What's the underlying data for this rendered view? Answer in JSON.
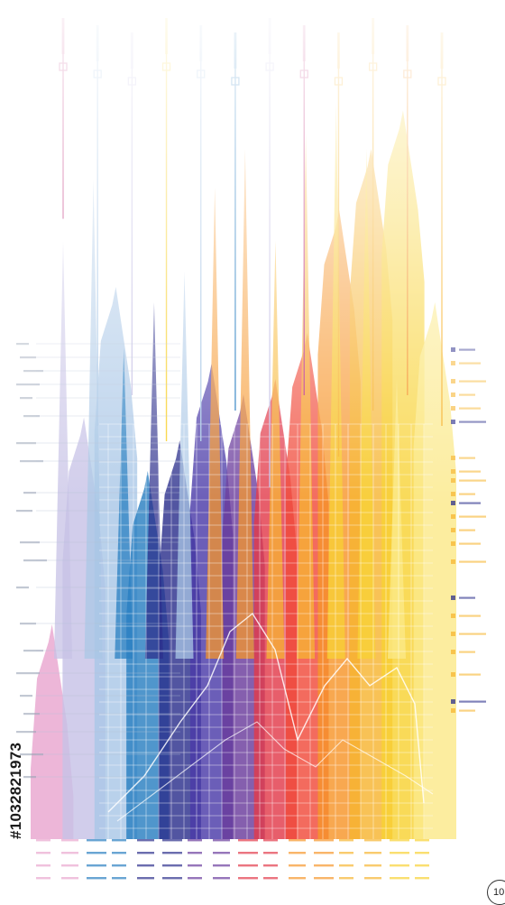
{
  "image": {
    "stock_id": "#1032821973",
    "corner_mark": "10"
  },
  "palette": {
    "pink": "#e9a6cf",
    "magenta": "#c23a82",
    "lavender": "#c7c2e6",
    "light_blue": "#a9c7e6",
    "blue": "#2a7fc1",
    "navy": "#2c2f8c",
    "indigo": "#4a3aa8",
    "violet": "#6a3c9c",
    "crimson": "#e23a4a",
    "red": "#f04b3a",
    "orange": "#f6952a",
    "amber": "#f7b531",
    "yellow": "#f8d233",
    "pale_yellow": "#fbe98a",
    "grid": "#ffffff"
  },
  "bands": [
    {
      "color": "pink",
      "peak": 0.28
    },
    {
      "color": "lavender",
      "peak": 0.55
    },
    {
      "color": "light_blue",
      "peak": 0.72
    },
    {
      "color": "blue",
      "peak": 0.48
    },
    {
      "color": "navy",
      "peak": 0.52
    },
    {
      "color": "indigo",
      "peak": 0.62
    },
    {
      "color": "violet",
      "peak": 0.58
    },
    {
      "color": "crimson",
      "peak": 0.6
    },
    {
      "color": "red",
      "peak": 0.66
    },
    {
      "color": "orange",
      "peak": 0.82
    },
    {
      "color": "amber",
      "peak": 0.9
    },
    {
      "color": "yellow",
      "peak": 0.95
    },
    {
      "color": "pale_yellow",
      "peak": 0.7
    }
  ],
  "spikes": [
    {
      "color": "lavender",
      "level": 0.78
    },
    {
      "color": "light_blue",
      "level": 0.86
    },
    {
      "color": "blue",
      "level": 0.64
    },
    {
      "color": "navy",
      "level": 0.7
    },
    {
      "color": "light_blue",
      "level": 0.74
    },
    {
      "color": "orange",
      "level": 0.85
    },
    {
      "color": "orange",
      "level": 0.9
    },
    {
      "color": "amber",
      "level": 0.78
    },
    {
      "color": "amber",
      "level": 0.92
    },
    {
      "color": "yellow",
      "level": 0.96
    },
    {
      "color": "yellow",
      "level": 0.9
    },
    {
      "color": "pale_yellow",
      "level": 0.6
    }
  ],
  "lines": [
    {
      "color": "magenta",
      "level": 0.95
    },
    {
      "color": "light_blue",
      "level": 0.68
    },
    {
      "color": "lavender",
      "level": 0.72
    },
    {
      "color": "yellow",
      "level": 0.66
    },
    {
      "color": "light_blue",
      "level": 0.66
    },
    {
      "color": "blue",
      "level": 0.7
    },
    {
      "color": "lavender",
      "level": 0.6
    },
    {
      "color": "magenta",
      "level": 0.72
    },
    {
      "color": "amber",
      "level": 0.64
    },
    {
      "color": "amber",
      "level": 0.7
    },
    {
      "color": "orange",
      "level": 0.72
    },
    {
      "color": "amber",
      "level": 0.68
    }
  ]
}
